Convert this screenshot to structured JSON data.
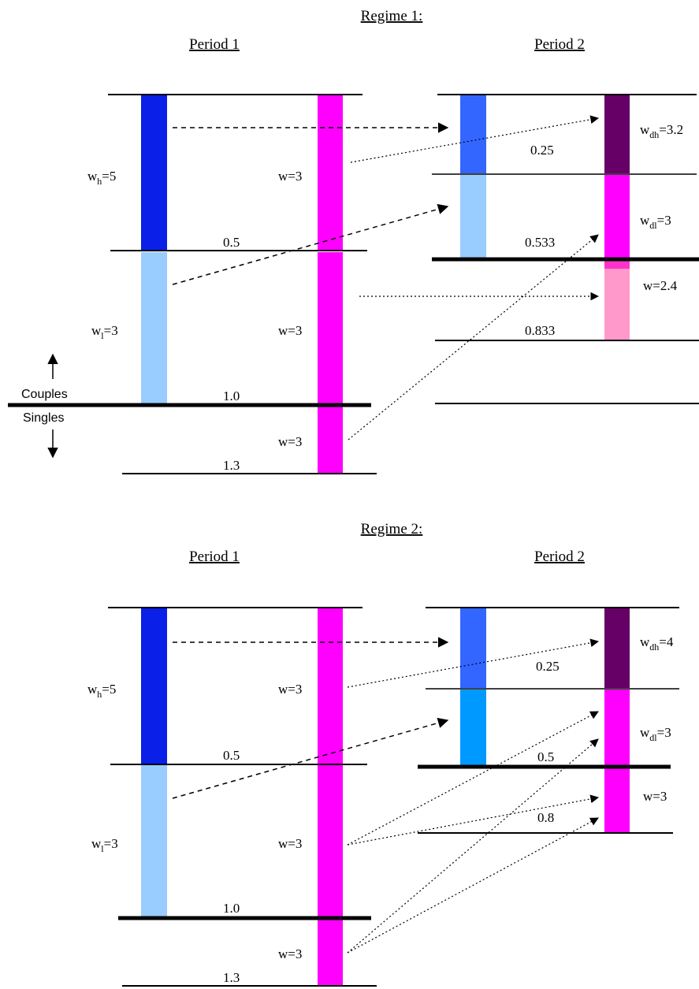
{
  "colors": {
    "dark_blue": "#0a1fe8",
    "light_blue": "#99ccff",
    "medium_blue": "#3366ff",
    "cyan_blue": "#0099ff",
    "magenta": "#ff00ff",
    "dark_purple": "#660066",
    "pink": "#ff99cc"
  },
  "regime1": {
    "title": "Regime 1:",
    "period1": "Period 1",
    "period2": "Period 2",
    "p1": {
      "wh": "w",
      "wh_sub": "h",
      "wh_val": "=5",
      "wl": "w",
      "wl_sub": "l",
      "wl_val": "=3",
      "w_top": "w=3",
      "w_mid": "w=3",
      "w_bot": "w=3",
      "tick1": "0.5",
      "tick2": "1.0",
      "tick3": "1.3"
    },
    "p2": {
      "wdh": "w",
      "wdh_sub": "dh",
      "wdh_val": "=3.2",
      "wdl": "w",
      "wdl_sub": "dl",
      "wdl_val": "=3",
      "w": "w=2.4",
      "tick1": "0.25",
      "tick2": "0.533",
      "tick3": "0.833"
    },
    "couples": "Couples",
    "singles": "Singles"
  },
  "regime2": {
    "title": "Regime 2:",
    "period1": "Period 1",
    "period2": "Period 2",
    "p1": {
      "wh": "w",
      "wh_sub": "h",
      "wh_val": "=5",
      "wl": "w",
      "wl_sub": "l",
      "wl_val": "=3",
      "w_top": "w=3",
      "w_mid": "w=3",
      "w_bot": "w=3",
      "tick1": "0.5",
      "tick2": "1.0",
      "tick3": "1.3"
    },
    "p2": {
      "wdh": "w",
      "wdh_sub": "dh",
      "wdh_val": "=4",
      "wdl": "w",
      "wdl_sub": "dl",
      "wdl_val": "=3",
      "w": "w=3",
      "tick1": "0.25",
      "tick2": "0.5",
      "tick3": "0.8"
    }
  }
}
